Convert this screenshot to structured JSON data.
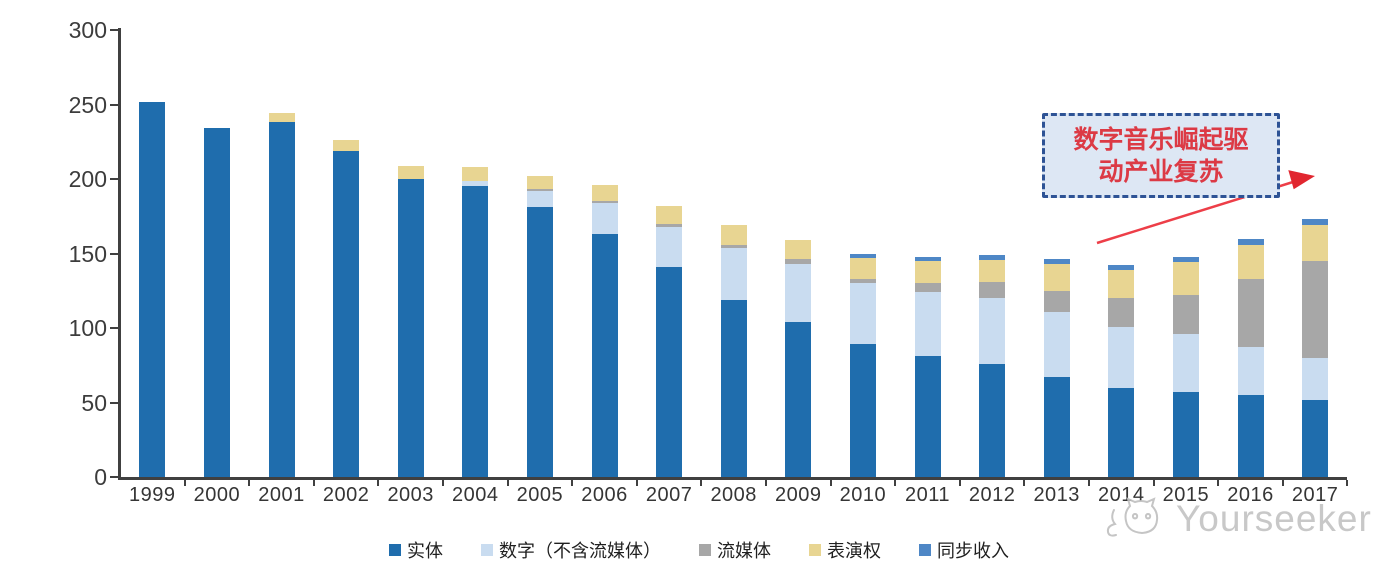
{
  "chart_data": {
    "type": "bar",
    "stacked": true,
    "title": "",
    "xlabel": "",
    "ylabel": "",
    "ylim": [
      0,
      300
    ],
    "yticks": [
      0,
      50,
      100,
      150,
      200,
      250,
      300
    ],
    "grid": false,
    "legend_position": "bottom",
    "categories": [
      "1999",
      "2000",
      "2001",
      "2002",
      "2003",
      "2004",
      "2005",
      "2006",
      "2007",
      "2008",
      "2009",
      "2010",
      "2011",
      "2012",
      "2013",
      "2014",
      "2015",
      "2016",
      "2017"
    ],
    "series": [
      {
        "name": "实体",
        "color": "#1f6dad",
        "values": [
          252,
          234,
          238,
          219,
          200,
          195,
          181,
          163,
          141,
          119,
          104,
          89,
          81,
          76,
          67,
          60,
          57,
          55,
          52
        ]
      },
      {
        "name": "数字（不含流媒体）",
        "color": "#c9dcf0",
        "values": [
          0,
          0,
          0,
          0,
          0,
          4,
          11,
          21,
          27,
          35,
          39,
          41,
          43,
          44,
          44,
          41,
          39,
          32,
          28
        ]
      },
      {
        "name": "流媒体",
        "color": "#a7a7a7",
        "values": [
          0,
          0,
          0,
          0,
          0,
          0,
          1,
          1,
          2,
          2,
          3,
          3,
          6,
          11,
          14,
          19,
          26,
          46,
          65
        ]
      },
      {
        "name": "表演权",
        "color": "#e8d592",
        "values": [
          0,
          0,
          6,
          7,
          9,
          9,
          9,
          11,
          12,
          13,
          13,
          14,
          15,
          15,
          18,
          19,
          22,
          23,
          24
        ]
      },
      {
        "name": "同步收入",
        "color": "#4e87c6",
        "values": [
          0,
          0,
          0,
          0,
          0,
          0,
          0,
          0,
          0,
          0,
          0,
          3,
          3,
          3,
          3,
          3,
          4,
          4,
          4
        ]
      }
    ],
    "totals": [
      252,
      234,
      244,
      226,
      209,
      208,
      202,
      196,
      182,
      169,
      159,
      150,
      148,
      149,
      146,
      142,
      148,
      160,
      173
    ]
  },
  "annotation": {
    "line1": "数字音乐崛起驱",
    "line2": "动产业复苏",
    "text_color": "#dc3a45",
    "border_color": "#2e5395",
    "fill_color": "#dde7f4",
    "arrow_color": "#ed3e48"
  },
  "watermark": {
    "text": "Yourseeker",
    "logo": "cat-logo-icon"
  }
}
